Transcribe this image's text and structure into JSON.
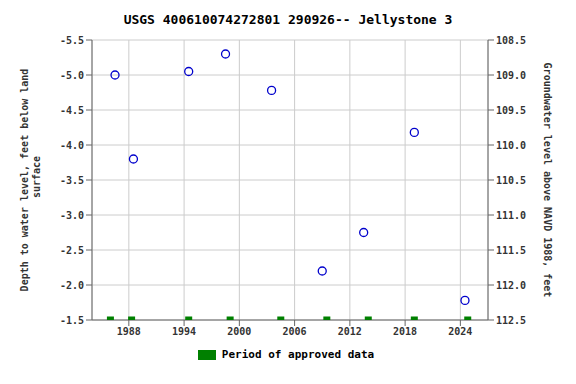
{
  "chart_data": {
    "type": "scatter",
    "title": "USGS 400610074272801 290926-- Jellystone 3",
    "y_label": "Depth to water level, feet below land\n surface",
    "y2_label": "Groundwater level above NAVD 1988, feet",
    "xlim": [
      1984,
      2027
    ],
    "xticks": [
      1988,
      1994,
      2000,
      2006,
      2012,
      2018,
      2024
    ],
    "ylim": [
      -1.5,
      -5.5
    ],
    "yticks": [
      -5.5,
      {
        "value": -5.0,
        "label": "-5.0"
      },
      -4.5,
      {
        "value": -4.0,
        "label": "-4.0"
      },
      -3.5,
      {
        "value": -3.0,
        "label": "-3.0"
      },
      -2.5,
      {
        "value": -2.0,
        "label": "-2.0"
      },
      -1.5
    ],
    "y2lim": [
      112.5,
      108.5
    ],
    "y2ticks": [
      112.5,
      {
        "value": 112.0,
        "label": "112.0"
      },
      111.5,
      {
        "value": 111.0,
        "label": "111.0"
      },
      110.5,
      {
        "value": 110.0,
        "label": "110.0"
      },
      109.5,
      {
        "value": 109.0,
        "label": "109.0"
      },
      108.5
    ],
    "grid": true,
    "legend": "bottom",
    "series": [
      {
        "color": "#0000cc",
        "marker": "circle_open",
        "x": [
          1986.5,
          1988.5,
          1994.5,
          1998.5,
          2003.5,
          2009.0,
          2013.5,
          2019.0,
          2024.5
        ],
        "values": [
          -5.0,
          -3.8,
          -5.05,
          -5.3,
          -4.78,
          -2.2,
          -2.75,
          -4.18,
          -1.78
        ]
      },
      {
        "name": "Period of approved data",
        "color": "#008000",
        "marker": "square",
        "x": [
          1986.0,
          1988.3,
          1994.5,
          1999.0,
          2004.5,
          2009.5,
          2014.0,
          2019.0,
          2024.8
        ],
        "values": [
          -1.5,
          -1.5,
          -1.5,
          -1.5,
          -1.5,
          -1.5,
          -1.5,
          -1.5,
          -1.5
        ]
      }
    ]
  }
}
